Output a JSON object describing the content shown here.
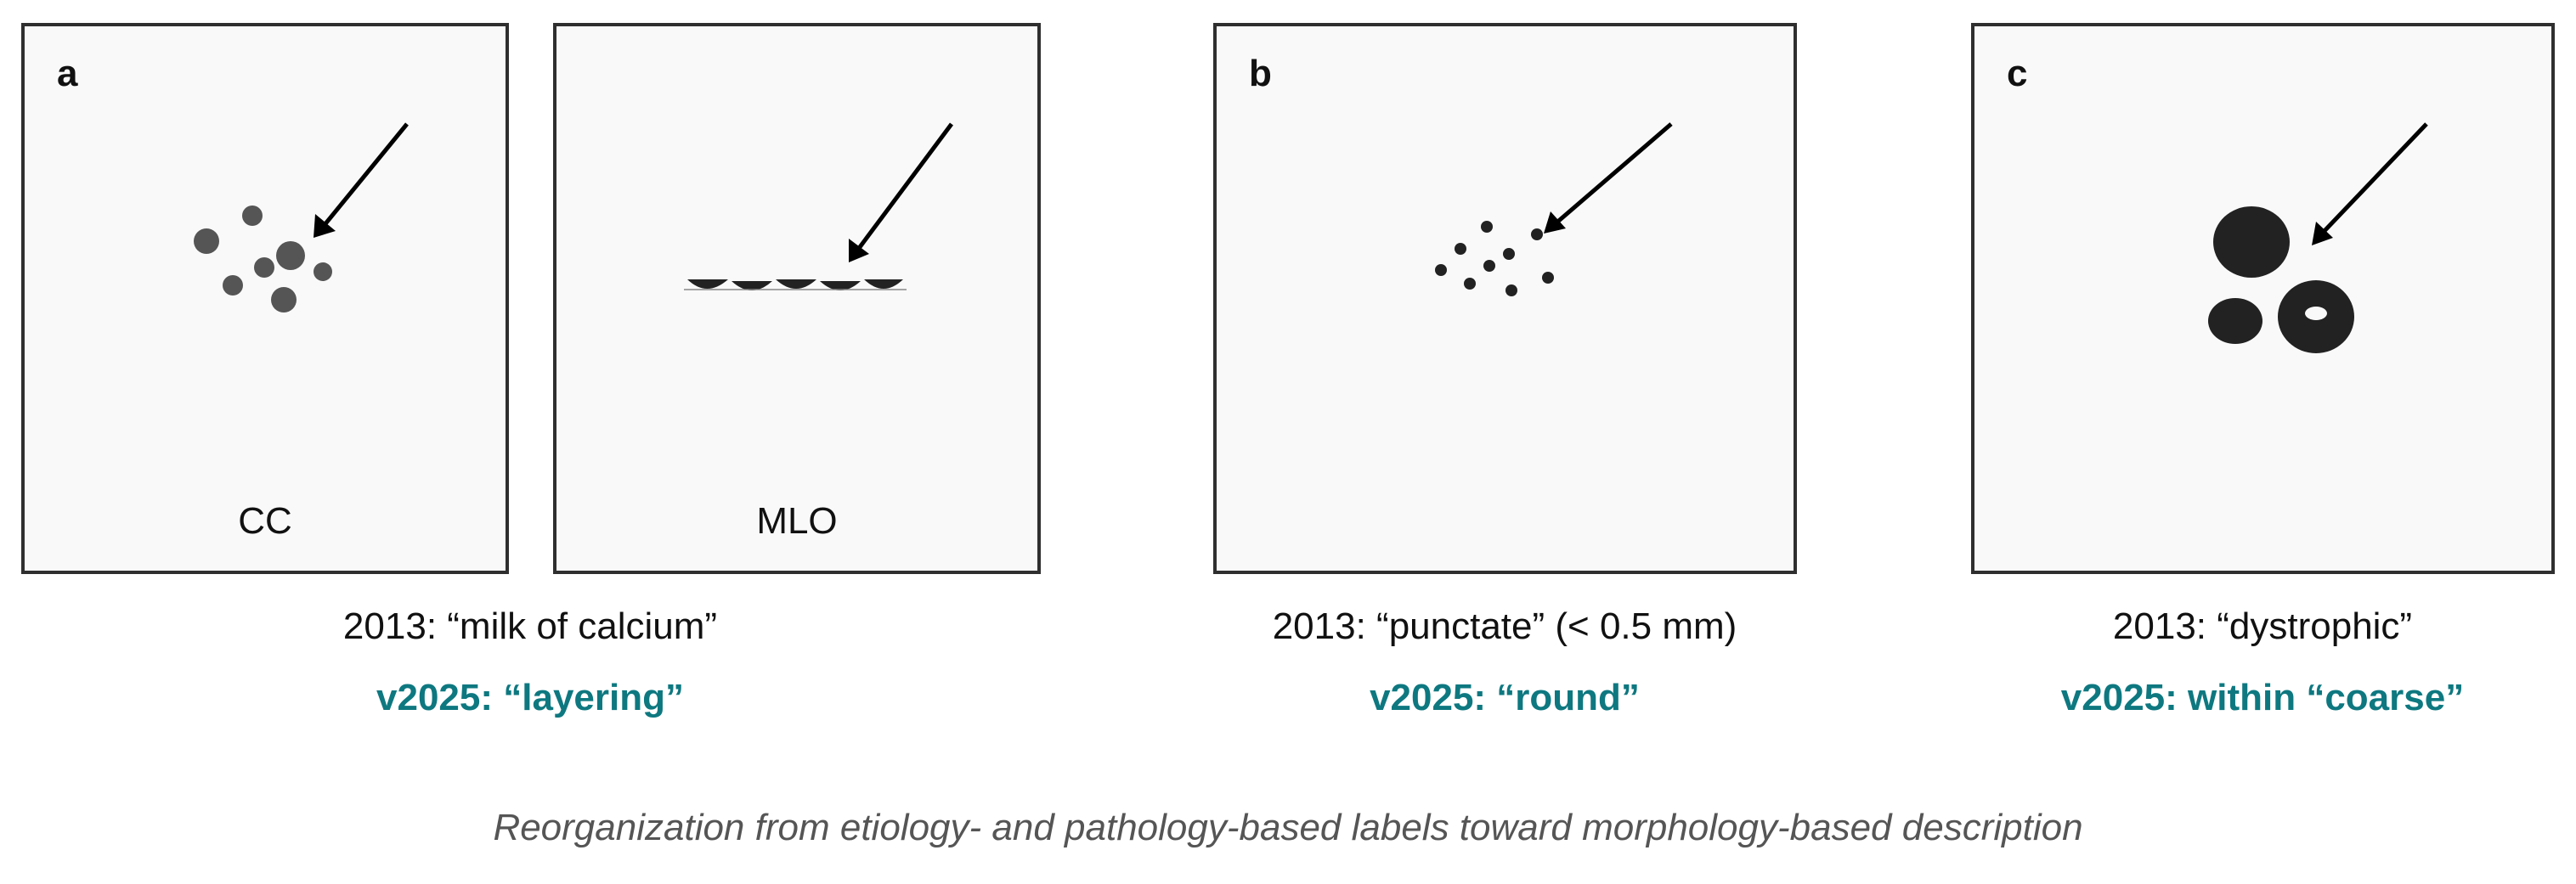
{
  "colors": {
    "accent": "#0e7880",
    "frame": "#2f2f2f",
    "panel_bg": "#f9f9f9",
    "dot_gray": "#555555",
    "mark_dark": "#222222",
    "footer_text": "#555555"
  },
  "panels": {
    "a": {
      "letter": "a",
      "cc_label": "CC",
      "mlo_label": "MLO",
      "old_label": "2013: “milk of calcium”",
      "new_label": "v2025: “layering”"
    },
    "b": {
      "letter": "b",
      "old_label": "2013: “punctate” (< 0.5 mm)",
      "new_label": "v2025: “round”"
    },
    "c": {
      "letter": "c",
      "old_label": "2013: “dystrophic”",
      "new_label": "v2025: within “coarse”"
    }
  },
  "footer": "Reorganization from etiology- and pathology-based labels toward morphology-based description"
}
